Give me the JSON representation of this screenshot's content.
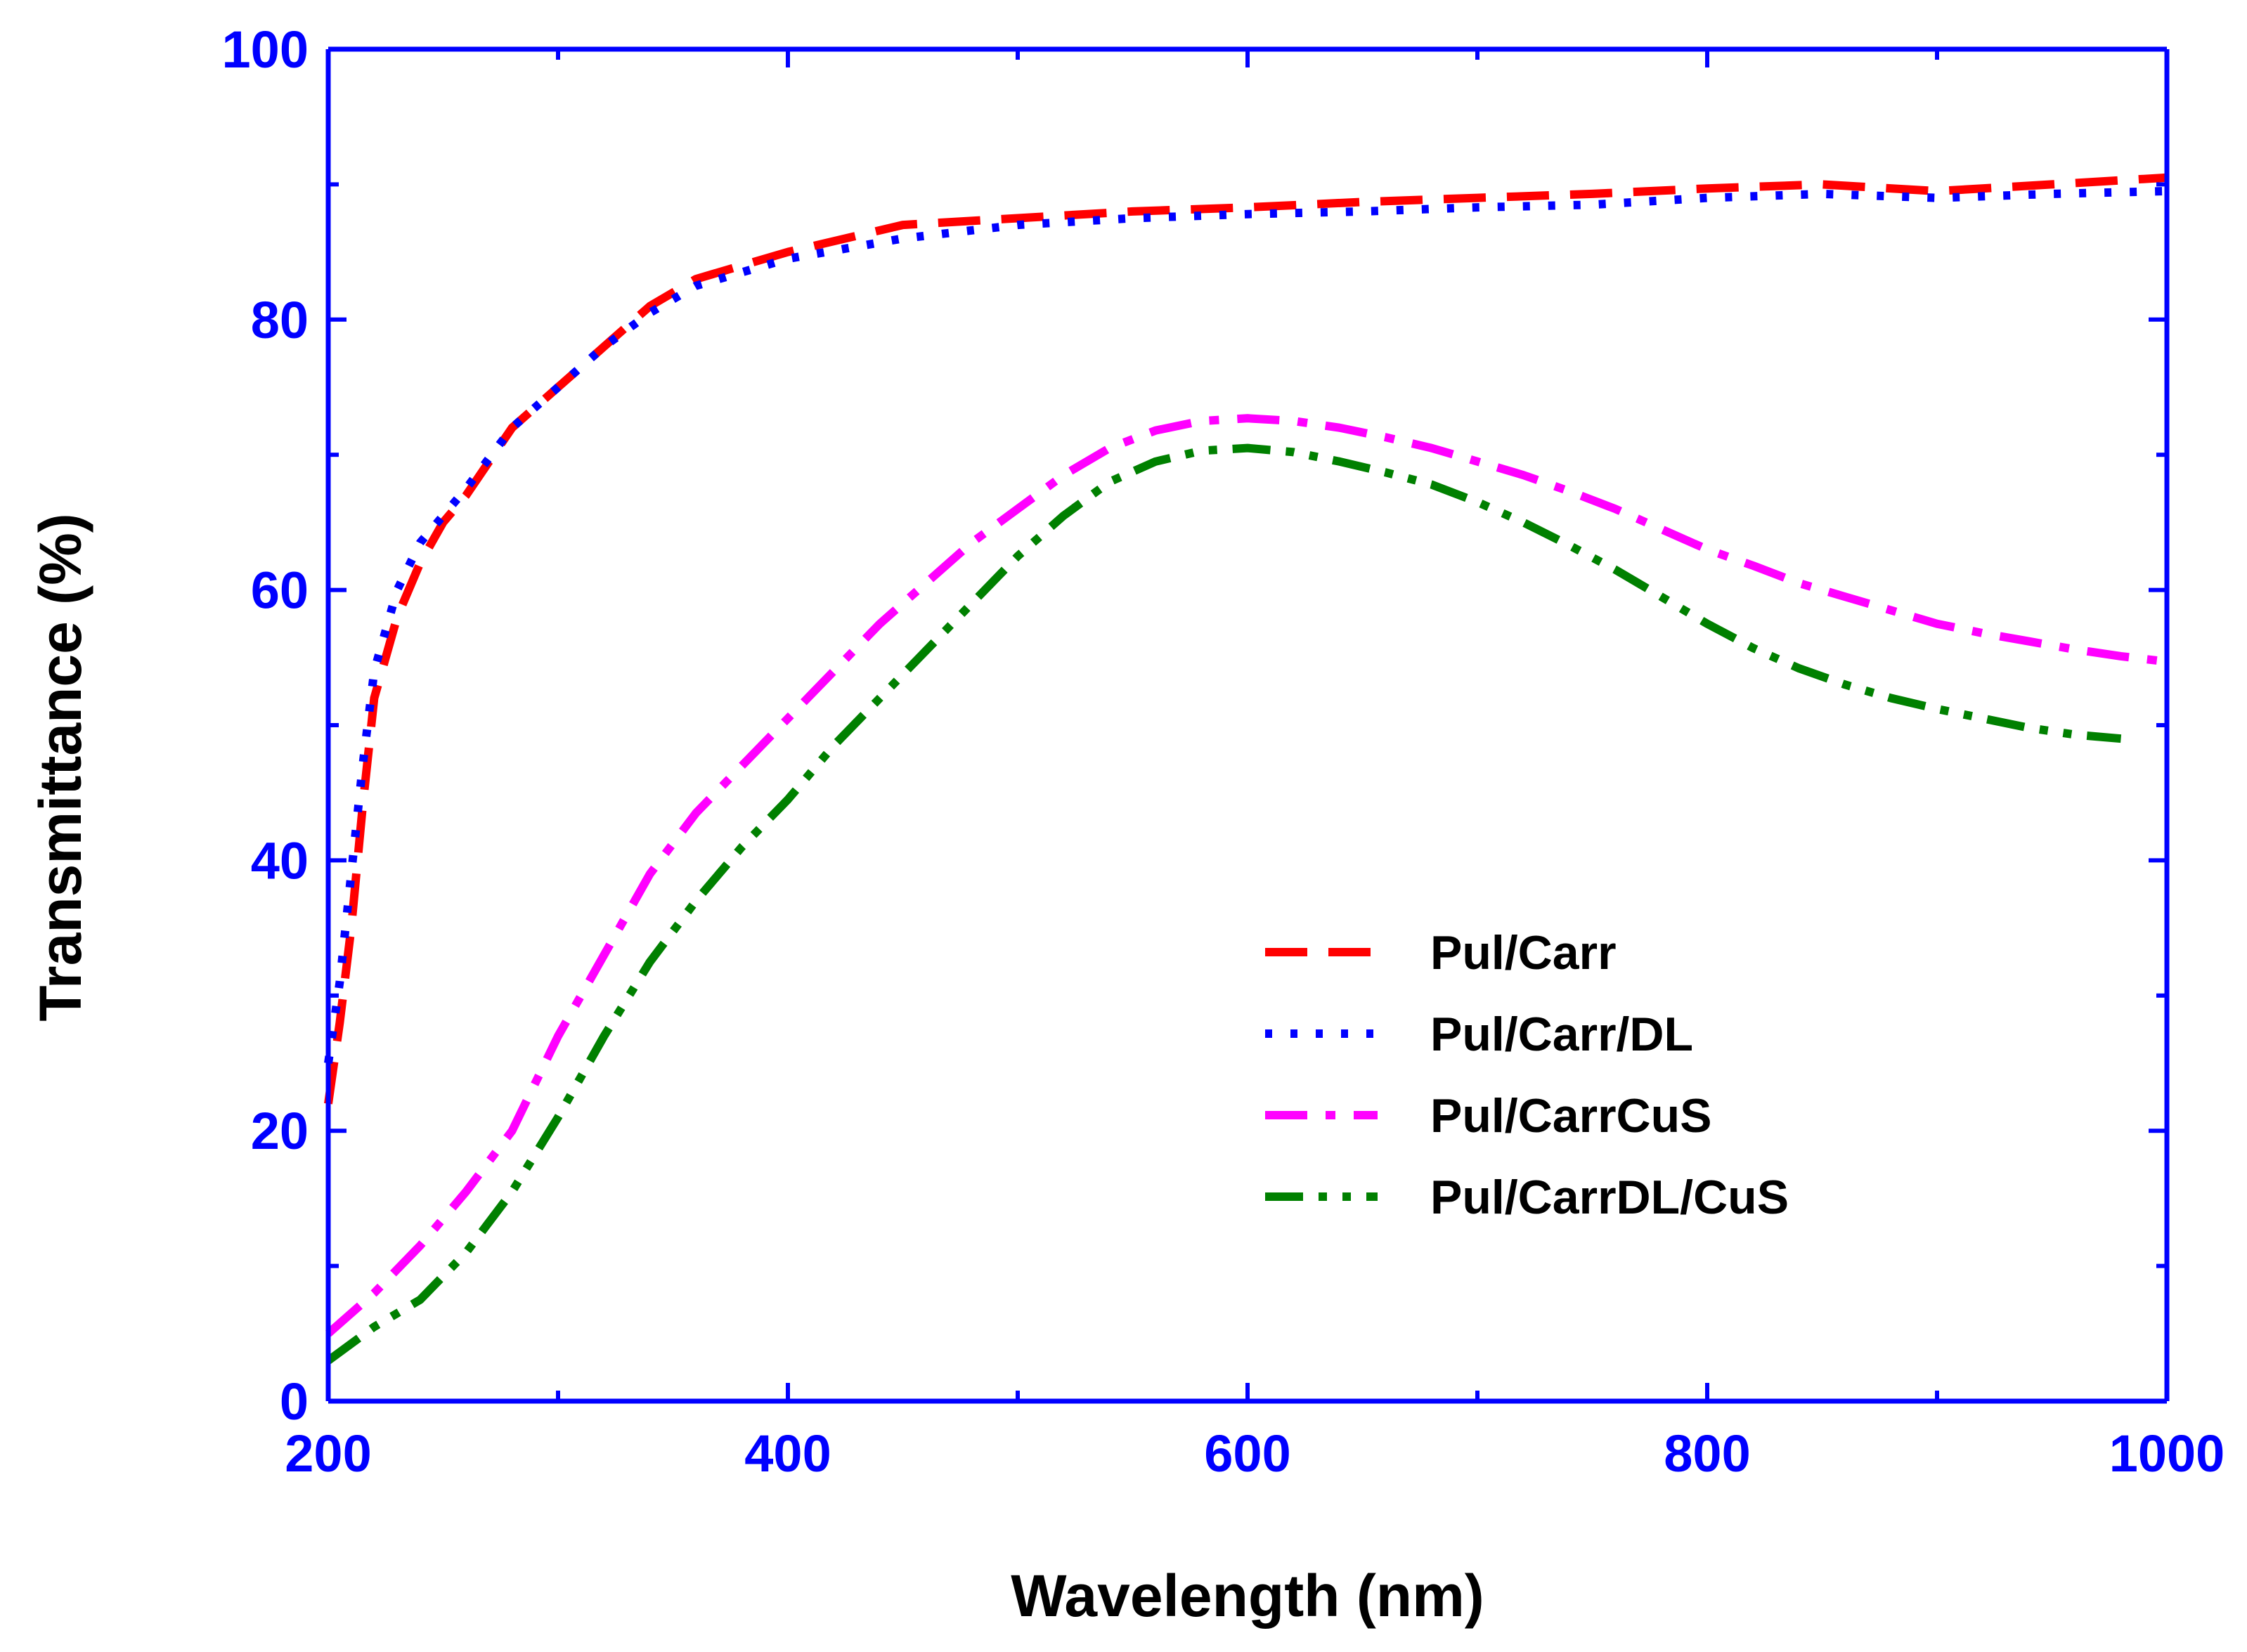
{
  "chart_data": {
    "type": "line",
    "xlabel": "Wavelength (nm)",
    "ylabel": "Transmittance (%)",
    "xlim": [
      200,
      1000
    ],
    "ylim": [
      0,
      100
    ],
    "x_ticks": [
      200,
      400,
      600,
      800,
      1000
    ],
    "y_ticks": [
      0,
      20,
      40,
      60,
      80,
      100
    ],
    "x_minor_ticks": [
      300,
      500,
      700,
      900
    ],
    "y_minor_ticks": [
      10,
      30,
      50,
      70,
      90
    ],
    "grid": false,
    "legend_position": "center-right",
    "axis_color": "#0000FF",
    "series": [
      {
        "name": "Pul/Carr",
        "color": "#FF0000",
        "dash": "dashed",
        "x": [
          200,
          205,
          210,
          215,
          220,
          230,
          240,
          250,
          260,
          280,
          300,
          320,
          340,
          360,
          380,
          400,
          450,
          500,
          550,
          600,
          650,
          700,
          750,
          800,
          850,
          900,
          950,
          1000
        ],
        "y": [
          22,
          28,
          35,
          44,
          52,
          58,
          62,
          65,
          67,
          72,
          75,
          78,
          81,
          83,
          84,
          85,
          87,
          87.5,
          88,
          88.3,
          88.7,
          89,
          89.3,
          89.7,
          90,
          89.5,
          90,
          90.5
        ]
      },
      {
        "name": "Pul/Carr/DL",
        "color": "#0000FF",
        "dash": "dotted",
        "x": [
          200,
          205,
          210,
          215,
          220,
          230,
          240,
          250,
          260,
          280,
          300,
          320,
          340,
          360,
          380,
          400,
          450,
          500,
          550,
          600,
          650,
          700,
          750,
          800,
          850,
          900,
          950,
          1000
        ],
        "y": [
          25,
          31,
          39,
          47,
          54,
          60,
          63.5,
          65.5,
          67.5,
          72,
          75,
          78,
          80.5,
          82.5,
          83.5,
          84.5,
          86,
          87,
          87.5,
          87.8,
          88,
          88.3,
          88.5,
          89,
          89.3,
          89,
          89.3,
          89.5
        ]
      },
      {
        "name": "Pul/CarrCuS",
        "color": "#FF00FF",
        "dash": "dash-dot",
        "x": [
          200,
          220,
          240,
          260,
          280,
          300,
          320,
          340,
          360,
          380,
          400,
          420,
          440,
          460,
          480,
          500,
          520,
          540,
          560,
          580,
          600,
          620,
          640,
          660,
          680,
          700,
          720,
          740,
          760,
          780,
          800,
          820,
          840,
          860,
          880,
          900,
          920,
          940,
          960,
          980,
          1000
        ],
        "y": [
          5,
          8,
          11.5,
          15.5,
          20,
          27,
          33,
          39,
          43.5,
          47,
          50.5,
          54,
          57.5,
          60.5,
          63.5,
          66,
          68.5,
          70.5,
          71.8,
          72.5,
          72.7,
          72.5,
          72,
          71.3,
          70.5,
          69.5,
          68.5,
          67.3,
          66,
          64.5,
          63,
          61.8,
          60.5,
          59.5,
          58.5,
          57.5,
          56.8,
          56.2,
          55.6,
          55.1,
          54.7
        ]
      },
      {
        "name": "Pul/CarrDL/CuS",
        "color": "#008000",
        "dash": "dash-dot-dot",
        "x": [
          200,
          220,
          240,
          260,
          280,
          300,
          320,
          340,
          360,
          380,
          400,
          420,
          440,
          460,
          480,
          500,
          520,
          540,
          560,
          580,
          600,
          620,
          640,
          660,
          680,
          700,
          720,
          740,
          760,
          780,
          800,
          820,
          840,
          860,
          880,
          900,
          920,
          940,
          960,
          980
        ],
        "y": [
          3,
          5.5,
          7.5,
          11,
          15.5,
          21,
          27,
          32.5,
          37,
          41,
          44.5,
          48.5,
          52,
          55.5,
          59,
          62.5,
          65.5,
          68,
          69.5,
          70.3,
          70.5,
          70.2,
          69.5,
          68.7,
          67.8,
          66.5,
          65,
          63.3,
          61.5,
          59.5,
          57.5,
          55.7,
          54.2,
          53,
          52,
          51.2,
          50.5,
          49.8,
          49.3,
          49
        ]
      }
    ]
  }
}
